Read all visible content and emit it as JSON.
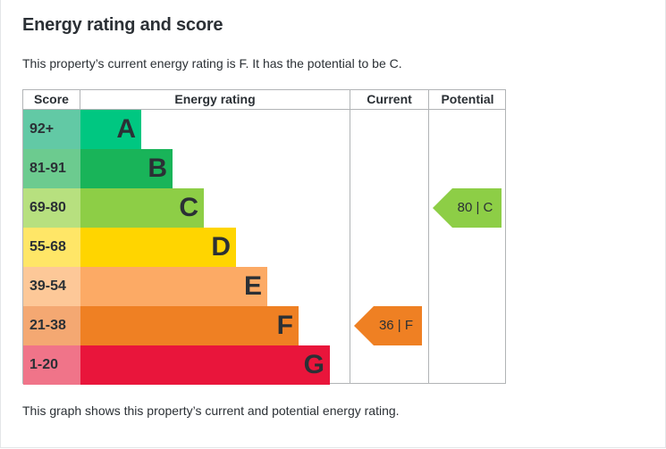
{
  "title": "Energy rating and score",
  "intro": "This property’s current energy rating is F. It has the potential to be C.",
  "footer": "This graph shows this property’s current and potential energy rating.",
  "headers": {
    "score": "Score",
    "rating": "Energy rating",
    "current": "Current",
    "potential": "Potential"
  },
  "bands": [
    {
      "score": "92+",
      "letter": "A",
      "bar_color": "#00c781",
      "score_color": "#62c9a5"
    },
    {
      "score": "81-91",
      "letter": "B",
      "bar_color": "#19b459",
      "score_color": "#6ccb8f"
    },
    {
      "score": "69-80",
      "letter": "C",
      "bar_color": "#8dce46",
      "score_color": "#b7e07f"
    },
    {
      "score": "55-68",
      "letter": "D",
      "bar_color": "#ffd500",
      "score_color": "#ffe667"
    },
    {
      "score": "39-54",
      "letter": "E",
      "bar_color": "#fcaa65",
      "score_color": "#fdc898"
    },
    {
      "score": "21-38",
      "letter": "F",
      "bar_color": "#ef8023",
      "score_color": "#f4a872"
    },
    {
      "score": "1-20",
      "letter": "G",
      "bar_color": "#e9153b",
      "score_color": "#f07489"
    }
  ],
  "current": {
    "label": "36 | F",
    "band": "F",
    "color": "#ef8023"
  },
  "potential": {
    "label": "80 | C",
    "band": "C",
    "color": "#8dce46"
  }
}
